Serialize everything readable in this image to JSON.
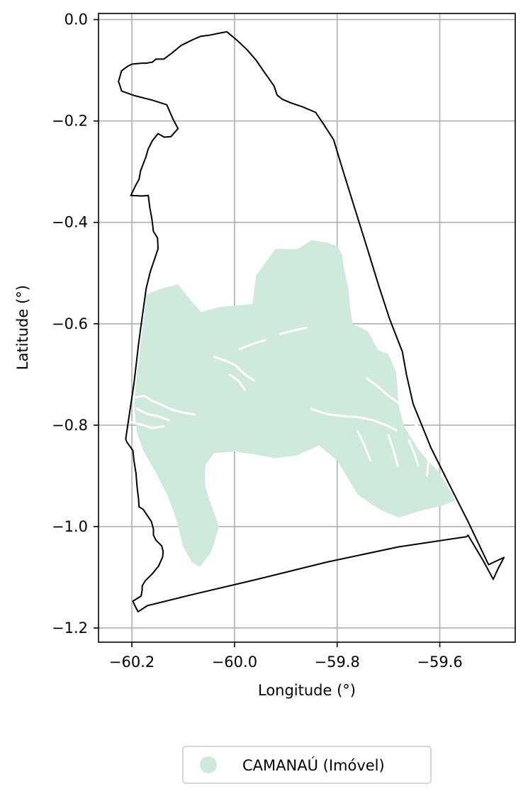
{
  "chart_data": {
    "type": "map",
    "xlabel": "Longitude (°)",
    "ylabel": "Latitude (°)",
    "xlim": [
      -60.265,
      -59.453
    ],
    "ylim": [
      -1.228,
      0.012
    ],
    "grid": true,
    "legend_placement": "bottom-center",
    "xticks": [
      {
        "value": -60.2,
        "label": "−60.2"
      },
      {
        "value": -60.0,
        "label": "−60.0"
      },
      {
        "value": -59.8,
        "label": "−59.8"
      },
      {
        "value": -59.6,
        "label": "−59.6"
      }
    ],
    "yticks": [
      {
        "value": 0.0,
        "label": "0.0"
      },
      {
        "value": -0.2,
        "label": "−0.2"
      },
      {
        "value": -0.4,
        "label": "−0.4"
      },
      {
        "value": -0.6,
        "label": "−0.6"
      },
      {
        "value": -0.8,
        "label": "−0.8"
      },
      {
        "value": -1.0,
        "label": "−1.0"
      },
      {
        "value": -1.2,
        "label": "−1.2"
      }
    ],
    "colors": {
      "boundary": "#000000",
      "property_fill": "#cfeadb",
      "grid": "#b0b0b0",
      "axes": "#000000"
    },
    "boundary": [
      [
        -60.226,
        -0.122
      ],
      [
        -60.22,
        -0.101
      ],
      [
        -60.208,
        -0.092
      ],
      [
        -60.2,
        -0.088
      ],
      [
        -60.19,
        -0.087
      ],
      [
        -60.18,
        -0.086
      ],
      [
        -60.172,
        -0.086
      ],
      [
        -60.16,
        -0.084
      ],
      [
        -60.153,
        -0.078
      ],
      [
        -60.138,
        -0.078
      ],
      [
        -60.122,
        -0.066
      ],
      [
        -60.104,
        -0.051
      ],
      [
        -60.092,
        -0.045
      ],
      [
        -60.08,
        -0.039
      ],
      [
        -60.066,
        -0.033
      ],
      [
        -60.05,
        -0.031
      ],
      [
        -60.03,
        -0.027
      ],
      [
        -60.015,
        -0.024
      ],
      [
        -59.995,
        -0.041
      ],
      [
        -59.976,
        -0.059
      ],
      [
        -59.958,
        -0.08
      ],
      [
        -59.941,
        -0.105
      ],
      [
        -59.923,
        -0.131
      ],
      [
        -59.917,
        -0.149
      ],
      [
        -59.907,
        -0.157
      ],
      [
        -59.891,
        -0.164
      ],
      [
        -59.868,
        -0.172
      ],
      [
        -59.842,
        -0.183
      ],
      [
        -59.826,
        -0.207
      ],
      [
        -59.807,
        -0.237
      ],
      [
        -59.788,
        -0.3
      ],
      [
        -59.765,
        -0.375
      ],
      [
        -59.742,
        -0.449
      ],
      [
        -59.719,
        -0.525
      ],
      [
        -59.698,
        -0.59
      ],
      [
        -59.673,
        -0.655
      ],
      [
        -59.665,
        -0.7
      ],
      [
        -59.652,
        -0.758
      ],
      [
        -59.617,
        -0.845
      ],
      [
        -59.58,
        -0.92
      ],
      [
        -59.545,
        -0.99
      ],
      [
        -59.505,
        -1.075
      ],
      [
        -59.475,
        -1.061
      ],
      [
        -59.486,
        -1.082
      ],
      [
        -59.496,
        -1.104
      ],
      [
        -59.515,
        -1.068
      ],
      [
        -59.545,
        -1.017
      ],
      [
        -59.548,
        -1.02
      ],
      [
        -59.68,
        -1.04
      ],
      [
        -59.82,
        -1.07
      ],
      [
        -59.96,
        -1.105
      ],
      [
        -60.09,
        -1.136
      ],
      [
        -60.17,
        -1.156
      ],
      [
        -60.188,
        -1.168
      ],
      [
        -60.194,
        -1.156
      ],
      [
        -60.198,
        -1.147
      ],
      [
        -60.182,
        -1.137
      ],
      [
        -60.18,
        -1.125
      ],
      [
        -60.18,
        -1.117
      ],
      [
        -60.174,
        -1.107
      ],
      [
        -60.16,
        -1.093
      ],
      [
        -60.148,
        -1.078
      ],
      [
        -60.14,
        -1.06
      ],
      [
        -60.139,
        -1.049
      ],
      [
        -60.142,
        -1.038
      ],
      [
        -60.153,
        -1.027
      ],
      [
        -60.158,
        -1.017
      ],
      [
        -60.158,
        -1.005
      ],
      [
        -60.162,
        -0.99
      ],
      [
        -60.17,
        -0.978
      ],
      [
        -60.178,
        -0.966
      ],
      [
        -60.186,
        -0.961
      ],
      [
        -60.187,
        -0.946
      ],
      [
        -60.19,
        -0.92
      ],
      [
        -60.192,
        -0.895
      ],
      [
        -60.196,
        -0.87
      ],
      [
        -60.198,
        -0.85
      ],
      [
        -60.21,
        -0.833
      ],
      [
        -60.212,
        -0.827
      ],
      [
        -60.205,
        -0.78
      ],
      [
        -60.196,
        -0.718
      ],
      [
        -60.187,
        -0.64
      ],
      [
        -60.18,
        -0.587
      ],
      [
        -60.172,
        -0.53
      ],
      [
        -60.164,
        -0.497
      ],
      [
        -60.155,
        -0.47
      ],
      [
        -60.149,
        -0.452
      ],
      [
        -60.15,
        -0.431
      ],
      [
        -60.158,
        -0.418
      ],
      [
        -60.161,
        -0.393
      ],
      [
        -60.165,
        -0.371
      ],
      [
        -60.168,
        -0.347
      ],
      [
        -60.18,
        -0.348
      ],
      [
        -60.202,
        -0.347
      ],
      [
        -60.193,
        -0.328
      ],
      [
        -60.186,
        -0.315
      ],
      [
        -60.183,
        -0.298
      ],
      [
        -60.173,
        -0.272
      ],
      [
        -60.168,
        -0.255
      ],
      [
        -60.16,
        -0.239
      ],
      [
        -60.149,
        -0.225
      ],
      [
        -60.137,
        -0.232
      ],
      [
        -60.124,
        -0.231
      ],
      [
        -60.11,
        -0.215
      ],
      [
        -60.12,
        -0.196
      ],
      [
        -60.132,
        -0.168
      ],
      [
        -60.16,
        -0.159
      ],
      [
        -60.195,
        -0.15
      ],
      [
        -60.22,
        -0.141
      ],
      [
        -60.223,
        -0.131
      ]
    ],
    "property_area": [
      [
        -60.172,
        -0.543
      ],
      [
        -60.15,
        -0.533
      ],
      [
        -60.11,
        -0.522
      ],
      [
        -60.09,
        -0.548
      ],
      [
        -60.065,
        -0.577
      ],
      [
        -60.03,
        -0.567
      ],
      [
        -59.965,
        -0.561
      ],
      [
        -59.958,
        -0.505
      ],
      [
        -59.92,
        -0.452
      ],
      [
        -59.88,
        -0.453
      ],
      [
        -59.868,
        -0.447
      ],
      [
        -59.85,
        -0.435
      ],
      [
        -59.82,
        -0.44
      ],
      [
        -59.8,
        -0.447
      ],
      [
        -59.79,
        -0.465
      ],
      [
        -59.788,
        -0.483
      ],
      [
        -59.785,
        -0.5
      ],
      [
        -59.778,
        -0.53
      ],
      [
        -59.775,
        -0.565
      ],
      [
        -59.77,
        -0.6
      ],
      [
        -59.74,
        -0.615
      ],
      [
        -59.72,
        -0.652
      ],
      [
        -59.7,
        -0.66
      ],
      [
        -59.685,
        -0.695
      ],
      [
        -59.68,
        -0.76
      ],
      [
        -59.67,
        -0.802
      ],
      [
        -59.64,
        -0.85
      ],
      [
        -59.6,
        -0.895
      ],
      [
        -59.578,
        -0.933
      ],
      [
        -59.57,
        -0.949
      ],
      [
        -59.6,
        -0.96
      ],
      [
        -59.64,
        -0.97
      ],
      [
        -59.68,
        -0.982
      ],
      [
        -59.71,
        -0.97
      ],
      [
        -59.73,
        -0.958
      ],
      [
        -59.76,
        -0.937
      ],
      [
        -59.78,
        -0.903
      ],
      [
        -59.8,
        -0.87
      ],
      [
        -59.835,
        -0.84
      ],
      [
        -59.88,
        -0.86
      ],
      [
        -59.92,
        -0.865
      ],
      [
        -59.96,
        -0.858
      ],
      [
        -60.0,
        -0.852
      ],
      [
        -60.04,
        -0.855
      ],
      [
        -60.056,
        -0.877
      ],
      [
        -60.058,
        -0.9
      ],
      [
        -60.056,
        -0.925
      ],
      [
        -60.042,
        -0.967
      ],
      [
        -60.03,
        -1.0
      ],
      [
        -60.045,
        -1.05
      ],
      [
        -60.068,
        -1.08
      ],
      [
        -60.083,
        -1.07
      ],
      [
        -60.1,
        -1.04
      ],
      [
        -60.112,
        -0.99
      ],
      [
        -60.13,
        -0.94
      ],
      [
        -60.155,
        -0.89
      ],
      [
        -60.178,
        -0.85
      ],
      [
        -60.19,
        -0.815
      ],
      [
        -60.196,
        -0.76
      ],
      [
        -60.19,
        -0.7
      ],
      [
        -60.183,
        -0.64
      ],
      [
        -60.177,
        -0.59
      ]
    ],
    "rivers": [
      [
        [
          -60.21,
          -0.735
        ],
        [
          -60.192,
          -0.745
        ],
        [
          -60.176,
          -0.742
        ],
        [
          -60.16,
          -0.752
        ],
        [
          -60.142,
          -0.76
        ],
        [
          -60.12,
          -0.77
        ],
        [
          -60.1,
          -0.775
        ],
        [
          -60.078,
          -0.779
        ]
      ],
      [
        [
          -60.19,
          -0.768
        ],
        [
          -60.17,
          -0.778
        ],
        [
          -60.15,
          -0.782
        ],
        [
          -60.128,
          -0.79
        ]
      ],
      [
        [
          -60.2,
          -0.794
        ],
        [
          -60.178,
          -0.8
        ],
        [
          -60.16,
          -0.806
        ],
        [
          -60.138,
          -0.802
        ]
      ],
      [
        [
          -60.04,
          -0.665
        ],
        [
          -60.02,
          -0.672
        ],
        [
          -59.998,
          -0.682
        ],
        [
          -59.98,
          -0.7
        ],
        [
          -59.962,
          -0.712
        ]
      ],
      [
        [
          -60.01,
          -0.7
        ],
        [
          -59.992,
          -0.713
        ],
        [
          -59.98,
          -0.73
        ]
      ],
      [
        [
          -59.99,
          -0.65
        ],
        [
          -59.965,
          -0.64
        ],
        [
          -59.94,
          -0.632
        ]
      ],
      [
        [
          -59.91,
          -0.62
        ],
        [
          -59.88,
          -0.612
        ],
        [
          -59.86,
          -0.608
        ]
      ],
      [
        [
          -59.742,
          -0.708
        ],
        [
          -59.72,
          -0.724
        ],
        [
          -59.7,
          -0.742
        ],
        [
          -59.675,
          -0.76
        ],
        [
          -59.662,
          -0.782
        ],
        [
          -59.646,
          -0.8
        ],
        [
          -59.625,
          -0.815
        ],
        [
          -59.612,
          -0.835
        ],
        [
          -59.605,
          -0.86
        ],
        [
          -59.612,
          -0.876
        ]
      ],
      [
        [
          -59.85,
          -0.768
        ],
        [
          -59.82,
          -0.778
        ],
        [
          -59.79,
          -0.782
        ],
        [
          -59.76,
          -0.784
        ],
        [
          -59.73,
          -0.79
        ],
        [
          -59.705,
          -0.8
        ],
        [
          -59.684,
          -0.81
        ]
      ],
      [
        [
          -59.76,
          -0.812
        ],
        [
          -59.746,
          -0.842
        ],
        [
          -59.735,
          -0.87
        ]
      ],
      [
        [
          -59.7,
          -0.82
        ],
        [
          -59.69,
          -0.85
        ],
        [
          -59.682,
          -0.88
        ]
      ],
      [
        [
          -59.66,
          -0.83
        ],
        [
          -59.65,
          -0.855
        ],
        [
          -59.642,
          -0.88
        ]
      ],
      [
        [
          -59.63,
          -0.848
        ],
        [
          -59.622,
          -0.872
        ],
        [
          -59.625,
          -0.9
        ]
      ]
    ],
    "legend": [
      {
        "name": "CAMANAÚ (Imóvel)",
        "color": "#cfeadb",
        "marker": "circle"
      }
    ]
  }
}
